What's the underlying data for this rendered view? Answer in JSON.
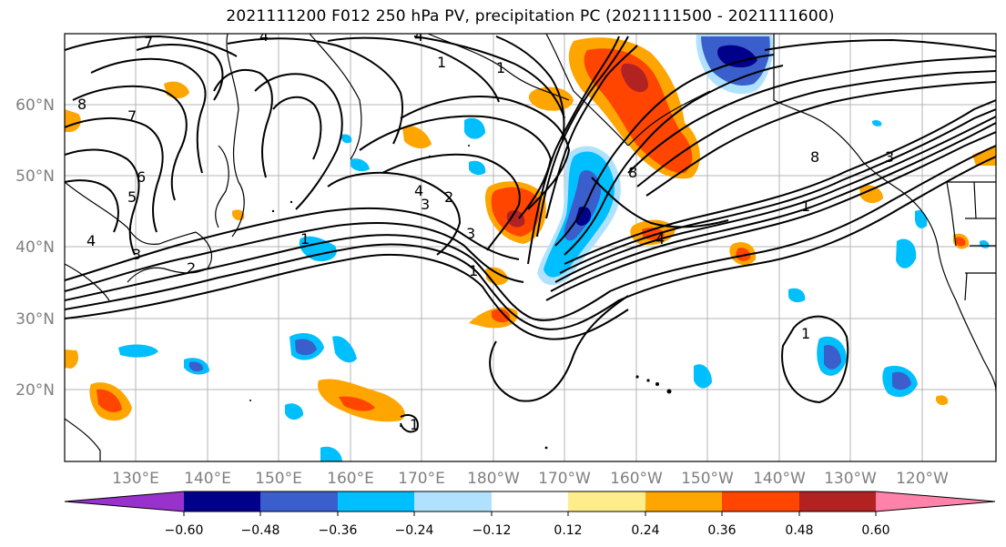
{
  "title": "2021111200 F012 250 hPa PV, precipitation PC (2021111500 - 2021111600)",
  "lat_labels": [
    "60°N",
    "50°N",
    "40°N",
    "30°N",
    "20°N"
  ],
  "lon_labels": [
    "130°E",
    "140°E",
    "150°E",
    "160°E",
    "170°E",
    "180°W",
    "170°W",
    "160°W",
    "150°W",
    "140°W",
    "130°W",
    "120°W"
  ],
  "pv_contour_labels": [
    "7",
    "4",
    "1",
    "8",
    "7",
    "6",
    "5",
    "4",
    "3",
    "2",
    "1",
    "4",
    "3",
    "2",
    "4",
    "3",
    "8",
    "1",
    "8",
    "4",
    "3",
    "1",
    "1",
    "1",
    "1"
  ],
  "colorbar": {
    "ticks": [
      "−0.60",
      "−0.48",
      "−0.36",
      "−0.24",
      "−0.12",
      "0.12",
      "0.24",
      "0.36",
      "0.48",
      "0.60"
    ],
    "colors": [
      "#9932cc",
      "#00008b",
      "#3a5fcd",
      "#00bfff",
      "#b0e2ff",
      "#ffffff",
      "#ffec8b",
      "#ffa500",
      "#ff4500",
      "#b22222",
      "#ff82ab"
    ]
  }
}
